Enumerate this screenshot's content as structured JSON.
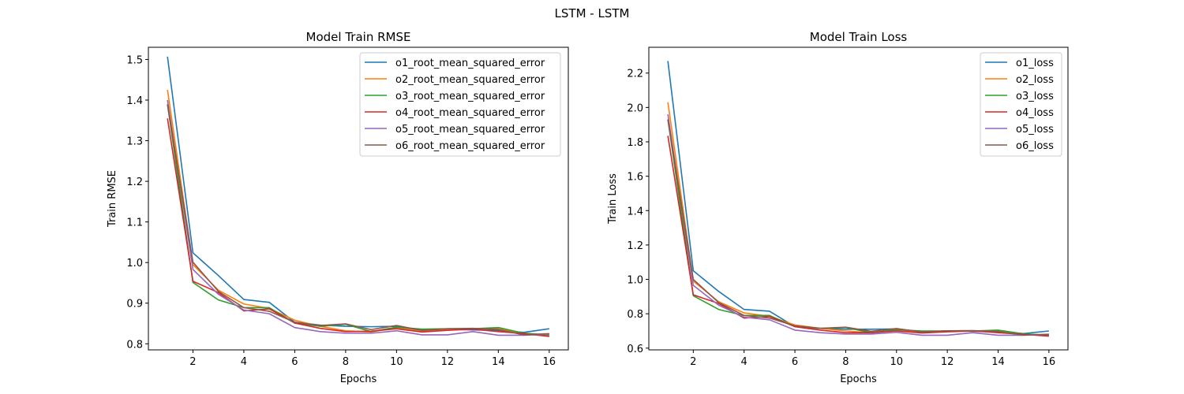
{
  "suptitle": "LSTM - LSTM",
  "colors": [
    "#1f77b4",
    "#ff7f0e",
    "#2ca02c",
    "#d62728",
    "#9467bd",
    "#8c564b"
  ],
  "chart_data": [
    {
      "type": "line",
      "title": "Model Train RMSE",
      "xlabel": "Epochs",
      "ylabel": "Train RMSE",
      "xlim": [
        0.25,
        16.75
      ],
      "ylim": [
        0.785,
        1.53
      ],
      "xticks": [
        2,
        4,
        6,
        8,
        10,
        12,
        14,
        16
      ],
      "yticks": [
        0.8,
        0.9,
        1.0,
        1.1,
        1.2,
        1.3,
        1.4,
        1.5
      ],
      "ytick_labels": [
        "0.8",
        "0.9",
        "1.0",
        "1.1",
        "1.2",
        "1.3",
        "1.4",
        "1.5"
      ],
      "legend_position": "top-right",
      "x": [
        1,
        2,
        3,
        4,
        5,
        6,
        7,
        8,
        9,
        10,
        11,
        12,
        13,
        14,
        15,
        16
      ],
      "series": [
        {
          "name": "o1_root_mean_squared_error",
          "values": [
            1.507,
            1.024,
            0.968,
            0.909,
            0.902,
            0.853,
            0.846,
            0.843,
            0.842,
            0.843,
            0.833,
            0.836,
            0.834,
            0.833,
            0.828,
            0.837
          ]
        },
        {
          "name": "o2_root_mean_squared_error",
          "values": [
            1.425,
            0.995,
            0.932,
            0.898,
            0.887,
            0.858,
            0.843,
            0.832,
            0.829,
            0.84,
            0.83,
            0.834,
            0.836,
            0.838,
            0.823,
            0.82
          ]
        },
        {
          "name": "o3_root_mean_squared_error",
          "values": [
            1.39,
            0.951,
            0.908,
            0.889,
            0.889,
            0.851,
            0.843,
            0.848,
            0.83,
            0.841,
            0.836,
            0.837,
            0.837,
            0.84,
            0.826,
            0.822
          ]
        },
        {
          "name": "o4_root_mean_squared_error",
          "values": [
            1.355,
            0.954,
            0.926,
            0.881,
            0.886,
            0.851,
            0.838,
            0.83,
            0.831,
            0.837,
            0.829,
            0.833,
            0.836,
            0.83,
            0.825,
            0.818
          ]
        },
        {
          "name": "o5_root_mean_squared_error",
          "values": [
            1.4,
            0.983,
            0.922,
            0.883,
            0.874,
            0.84,
            0.83,
            0.826,
            0.826,
            0.832,
            0.822,
            0.822,
            0.83,
            0.821,
            0.821,
            0.824
          ]
        },
        {
          "name": "o6_root_mean_squared_error",
          "values": [
            1.389,
            1.001,
            0.929,
            0.889,
            0.88,
            0.853,
            0.845,
            0.849,
            0.835,
            0.845,
            0.833,
            0.837,
            0.838,
            0.835,
            0.822,
            0.825
          ]
        }
      ]
    },
    {
      "type": "line",
      "title": "Model Train Loss",
      "xlabel": "Epochs",
      "ylabel": "Train Loss",
      "xlim": [
        0.25,
        16.75
      ],
      "ylim": [
        0.59,
        2.35
      ],
      "xticks": [
        2,
        4,
        6,
        8,
        10,
        12,
        14,
        16
      ],
      "yticks": [
        0.6,
        0.8,
        1.0,
        1.2,
        1.4,
        1.6,
        1.8,
        2.0,
        2.2
      ],
      "ytick_labels": [
        "0.6",
        "0.8",
        "1.0",
        "1.2",
        "1.4",
        "1.6",
        "1.8",
        "2.0",
        "2.2"
      ],
      "legend_position": "top-right",
      "x": [
        1,
        2,
        3,
        4,
        5,
        6,
        7,
        8,
        9,
        10,
        11,
        12,
        13,
        14,
        15,
        16
      ],
      "series": [
        {
          "name": "o1_loss",
          "values": [
            2.27,
            1.05,
            0.93,
            0.825,
            0.815,
            0.725,
            0.715,
            0.71,
            0.71,
            0.712,
            0.695,
            0.7,
            0.698,
            0.695,
            0.685,
            0.7
          ]
        },
        {
          "name": "o2_loss",
          "values": [
            2.03,
            0.99,
            0.87,
            0.805,
            0.785,
            0.735,
            0.715,
            0.7,
            0.69,
            0.705,
            0.69,
            0.697,
            0.7,
            0.702,
            0.68,
            0.673
          ]
        },
        {
          "name": "o3_loss",
          "values": [
            1.93,
            0.905,
            0.825,
            0.79,
            0.79,
            0.725,
            0.715,
            0.72,
            0.69,
            0.708,
            0.7,
            0.7,
            0.7,
            0.705,
            0.683,
            0.676
          ]
        },
        {
          "name": "o4_loss",
          "values": [
            1.835,
            0.91,
            0.86,
            0.775,
            0.785,
            0.725,
            0.705,
            0.69,
            0.69,
            0.7,
            0.688,
            0.695,
            0.7,
            0.69,
            0.68,
            0.67
          ]
        },
        {
          "name": "o5_loss",
          "values": [
            1.96,
            0.965,
            0.85,
            0.78,
            0.765,
            0.705,
            0.69,
            0.682,
            0.682,
            0.692,
            0.675,
            0.675,
            0.69,
            0.675,
            0.675,
            0.68
          ]
        },
        {
          "name": "o6_loss",
          "values": [
            1.93,
            1.0,
            0.865,
            0.79,
            0.775,
            0.73,
            0.715,
            0.722,
            0.698,
            0.714,
            0.694,
            0.701,
            0.702,
            0.697,
            0.676,
            0.681
          ]
        }
      ]
    }
  ]
}
